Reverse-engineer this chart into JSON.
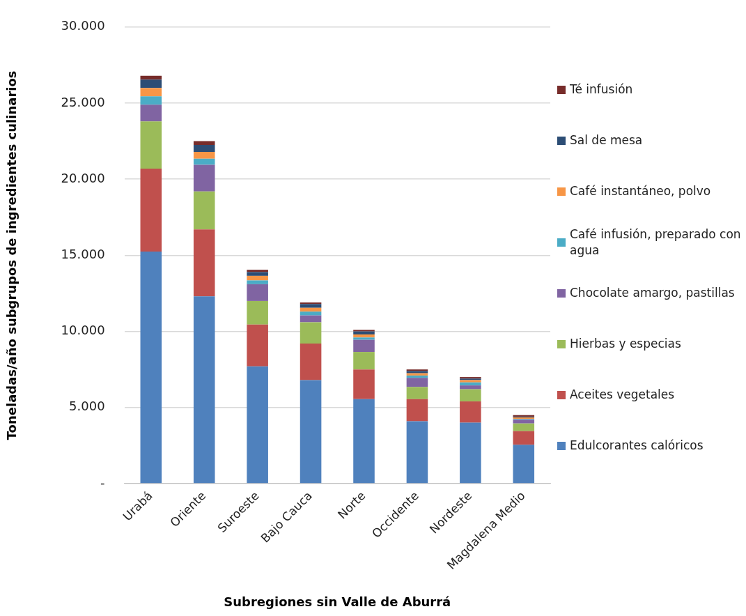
{
  "chart_data": {
    "type": "bar",
    "stacked": true,
    "xlabel": "Subregiones sin Valle de Aburrá",
    "ylabel": "Toneladas/año subgrupos de ingredientes culinarios",
    "categories": [
      "Urabá",
      "Oriente",
      "Suroeste",
      "Bajo Cauca",
      "Norte",
      "Occidente",
      "Nordeste",
      "Magdalena Medio"
    ],
    "ylim": [
      0,
      30000
    ],
    "yticks": [
      {
        "value": 0,
        "label": "-"
      },
      {
        "value": 5000,
        "label": "5.000"
      },
      {
        "value": 10000,
        "label": "10.000"
      },
      {
        "value": 15000,
        "label": "15.000"
      },
      {
        "value": 20000,
        "label": "20.000"
      },
      {
        "value": 25000,
        "label": "25.000"
      },
      {
        "value": 30000,
        "label": "30.000"
      }
    ],
    "grid": "y",
    "legend": "right",
    "series": [
      {
        "name": "Edulcorantes calóricos",
        "color": "#4f81bd",
        "values": [
          15250,
          12300,
          7700,
          6800,
          5550,
          4100,
          4000,
          2550
        ]
      },
      {
        "name": "Aceites vegetales",
        "color": "#c0504d",
        "values": [
          5450,
          4400,
          2750,
          2400,
          1950,
          1450,
          1400,
          900
        ]
      },
      {
        "name": "Hierbas y especias",
        "color": "#9bbb59",
        "values": [
          3100,
          2500,
          1550,
          1400,
          1150,
          800,
          800,
          500
        ]
      },
      {
        "name": "Chocolate amargo, pastillas",
        "color": "#8064a2",
        "values": [
          1100,
          1750,
          1100,
          450,
          800,
          600,
          250,
          250
        ]
      },
      {
        "name": "Café infusión, preparado con agua",
        "color": "#4bacc6",
        "values": [
          550,
          400,
          250,
          250,
          150,
          150,
          200,
          50
        ]
      },
      {
        "name": "Café instantáneo, polvo",
        "color": "#f79646",
        "values": [
          550,
          450,
          300,
          250,
          200,
          150,
          150,
          100
        ]
      },
      {
        "name": "Sal de mesa",
        "color": "#2c4d75",
        "values": [
          550,
          450,
          250,
          250,
          200,
          150,
          100,
          50
        ]
      },
      {
        "name": "Té infusión",
        "color": "#772c2a",
        "values": [
          250,
          250,
          150,
          100,
          100,
          100,
          100,
          100
        ]
      }
    ]
  }
}
